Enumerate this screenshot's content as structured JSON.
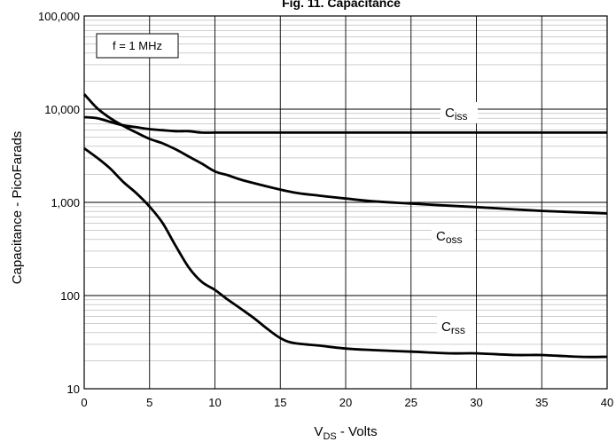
{
  "chart_data": {
    "type": "line",
    "title": "Fig. 11. Capacitance",
    "xlabel_main": "V",
    "xlabel_sub": "DS",
    "xlabel_tail": " - Volts",
    "ylabel": "Capacitance - PicoFarads",
    "xlim": [
      0,
      40
    ],
    "ylim": [
      10,
      100000
    ],
    "yscale": "log",
    "grid": true,
    "x_ticks": [
      "0",
      "5",
      "10",
      "15",
      "20",
      "25",
      "30",
      "35",
      "40"
    ],
    "y_ticks": [
      "10",
      "100",
      "1,000",
      "10,000",
      "100,000"
    ],
    "annotation": "f = 1 MHz",
    "series": [
      {
        "name_main": "C",
        "name_sub": "iss",
        "x": [
          0,
          1,
          2,
          3,
          4,
          5,
          6,
          7,
          8,
          9,
          10,
          12,
          15,
          20,
          25,
          30,
          35,
          40
        ],
        "y": [
          8200,
          8000,
          7300,
          6700,
          6400,
          6100,
          5950,
          5800,
          5800,
          5600,
          5600,
          5600,
          5600,
          5600,
          5600,
          5600,
          5600,
          5600
        ]
      },
      {
        "name_main": "C",
        "name_sub": "oss",
        "x": [
          0,
          1,
          2,
          3,
          4,
          5,
          6,
          7,
          8,
          9,
          10,
          11,
          12,
          14,
          16,
          18,
          20,
          22,
          25,
          28,
          30,
          33,
          35,
          38,
          40
        ],
        "y": [
          14500,
          10200,
          8000,
          6600,
          5600,
          4800,
          4300,
          3700,
          3100,
          2600,
          2150,
          1950,
          1750,
          1480,
          1280,
          1180,
          1100,
          1030,
          970,
          920,
          890,
          840,
          810,
          780,
          760
        ]
      },
      {
        "name_main": "C",
        "name_sub": "rss",
        "x": [
          0,
          1,
          2,
          3,
          4,
          5,
          6,
          7,
          8,
          9,
          10,
          11,
          12,
          13,
          14,
          15,
          16,
          18,
          20,
          22,
          25,
          28,
          30,
          33,
          35,
          38,
          40
        ],
        "y": [
          3800,
          3000,
          2300,
          1650,
          1250,
          900,
          600,
          340,
          200,
          140,
          115,
          90,
          72,
          57,
          44,
          35,
          31,
          29,
          27,
          26,
          25,
          24,
          24,
          23,
          23,
          22,
          22
        ]
      }
    ]
  }
}
